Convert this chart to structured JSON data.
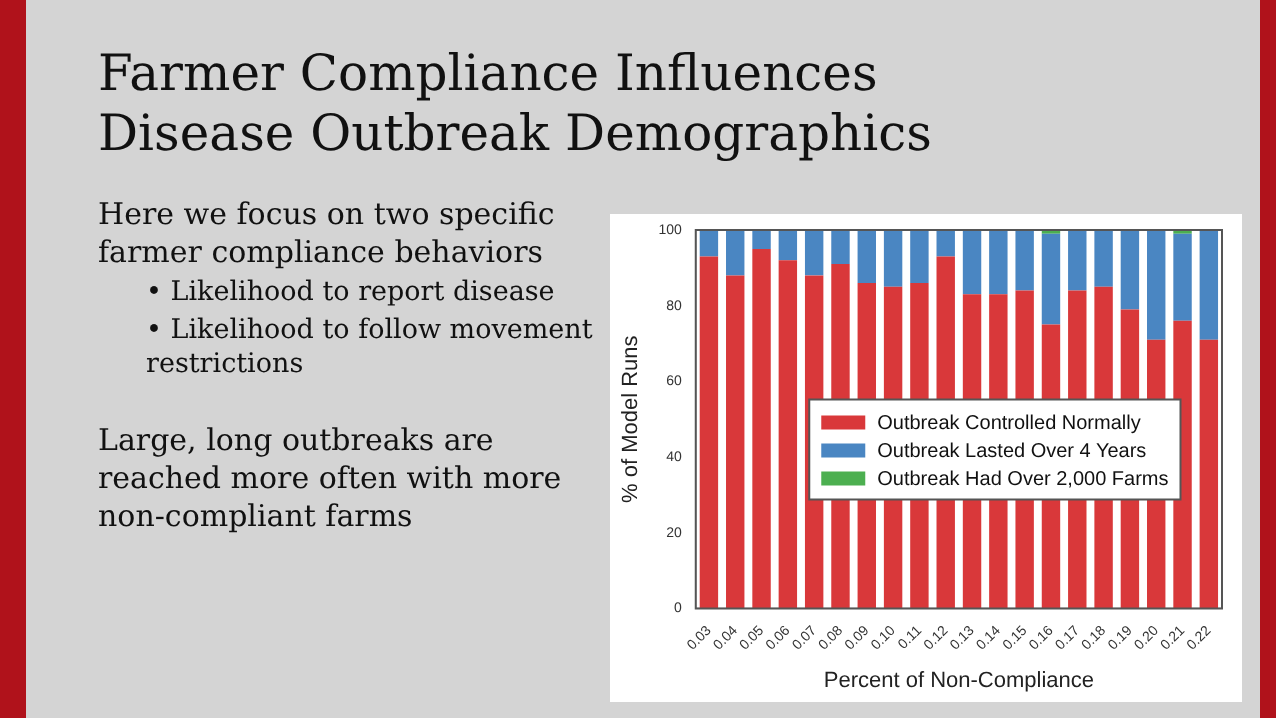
{
  "chart_data": {
    "type": "bar",
    "title": "Farmer Compliance Influences Disease Outbreak Demographics",
    "annotations": [
      "Here we focus on two specific farmer compliance behaviors",
      "• Likelihood to report disease",
      "• Likelihood to follow movement restrictions",
      "Large, long outbreaks are reached more often with more non-compliant farms"
    ],
    "xlabel": "Percent of Non-Compliance",
    "ylabel": "% of Model Runs",
    "categories": [
      "0.03",
      "0.04",
      "0.05",
      "0.06",
      "0.07",
      "0.08",
      "0.09",
      "0.10",
      "0.11",
      "0.12",
      "0.13",
      "0.14",
      "0.15",
      "0.16",
      "0.17",
      "0.18",
      "0.19",
      "0.20",
      "0.21",
      "0.22"
    ],
    "stacked": true,
    "ylim": [
      0,
      100
    ],
    "yticks": [
      0,
      20,
      40,
      60,
      80,
      100
    ],
    "grid": false,
    "legend": "center",
    "series": [
      {
        "name": "Outbreak Controlled Normally",
        "color": "#d9383a",
        "values": [
          93,
          88,
          95,
          92,
          88,
          91,
          86,
          85,
          86,
          93,
          83,
          83,
          84,
          75,
          84,
          85,
          79,
          71,
          76,
          71
        ]
      },
      {
        "name": "Outbreak Lasted Over 4 Years",
        "color": "#4a86c2",
        "values": [
          7,
          12,
          5,
          8,
          12,
          9,
          14,
          15,
          14,
          7,
          17,
          17,
          16,
          24,
          16,
          15,
          21,
          29,
          23,
          29
        ]
      },
      {
        "name": "Outbreak Had Over 2,000 Farms",
        "color": "#4caf50",
        "values": [
          0,
          0,
          0,
          0,
          0,
          0,
          0,
          0,
          0,
          0,
          0,
          0,
          0,
          1,
          0,
          0,
          0,
          0,
          1,
          0
        ]
      }
    ]
  }
}
